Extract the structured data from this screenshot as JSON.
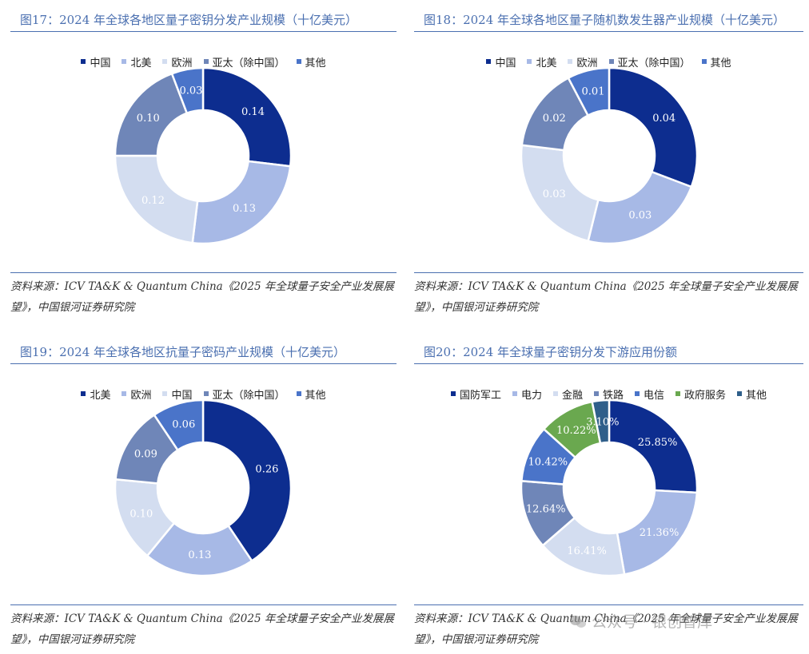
{
  "palette": {
    "navy": "#0d2d8f",
    "light_blue": "#a7b9e6",
    "pale_blue": "#d3ddf0",
    "steel_blue": "#6f86b8",
    "mid_blue": "#4a74c9",
    "green": "#6aa84f",
    "slate_blue": "#3a6b9a",
    "title_blue": "#4a6fb0"
  },
  "watermark": "公众号 · 银创智库",
  "chart_data": [
    {
      "type": "pie",
      "donut": true,
      "title": "图17：2024 年全球各地区量子密钥分发产业规模（十亿美元）",
      "categories": [
        "中国",
        "北美",
        "欧洲",
        "亚太（除中国）",
        "其他"
      ],
      "values": [
        0.14,
        0.13,
        0.12,
        0.1,
        0.03
      ],
      "labels": [
        "0.14",
        "0.13",
        "0.12",
        "0.10",
        "0.03"
      ],
      "colors": [
        "#0d2d8f",
        "#a7b9e6",
        "#d3ddf0",
        "#6f86b8",
        "#4a74c9"
      ],
      "legend_position": "top",
      "source": "资料来源：ICV TA&K & Quantum China《2025 年全球量子安全产业发展展望》，中国银河证券研究院"
    },
    {
      "type": "pie",
      "donut": true,
      "title": "图18：2024 年全球各地区量子随机数发生器产业规模（十亿美元）",
      "categories": [
        "中国",
        "北美",
        "欧洲",
        "亚太（除中国）",
        "其他"
      ],
      "values": [
        0.04,
        0.03,
        0.03,
        0.02,
        0.01
      ],
      "labels": [
        "0.04",
        "0.03",
        "0.03",
        "0.02",
        "0.01"
      ],
      "colors": [
        "#0d2d8f",
        "#a7b9e6",
        "#d3ddf0",
        "#6f86b8",
        "#4a74c9"
      ],
      "legend_position": "top",
      "source": "资料来源：ICV TA&K & Quantum China《2025 年全球量子安全产业发展展望》，中国银河证券研究院"
    },
    {
      "type": "pie",
      "donut": true,
      "title": "图19：2024 年全球各地区抗量子密码产业规模（十亿美元）",
      "categories": [
        "北美",
        "欧洲",
        "中国",
        "亚太（除中国）",
        "其他"
      ],
      "values": [
        0.26,
        0.13,
        0.1,
        0.09,
        0.06
      ],
      "labels": [
        "0.26",
        "0.13",
        "0.10",
        "0.09",
        "0.06"
      ],
      "colors": [
        "#0d2d8f",
        "#a7b9e6",
        "#d3ddf0",
        "#6f86b8",
        "#4a74c9"
      ],
      "legend_position": "top",
      "source": "资料来源：ICV TA&K & Quantum China《2025 年全球量子安全产业发展展望》，中国银河证券研究院"
    },
    {
      "type": "pie",
      "donut": true,
      "title": "图20：2024 年全球量子密钥分发下游应用份额",
      "categories": [
        "国防军工",
        "电力",
        "金融",
        "铁路",
        "电信",
        "政府服务",
        "其他"
      ],
      "values": [
        25.85,
        21.36,
        16.41,
        12.64,
        10.42,
        10.22,
        3.1
      ],
      "labels": [
        "25.85%",
        "21.36%",
        "16.41%",
        "12.64%",
        "10.42%",
        "10.22%",
        "3.10%"
      ],
      "colors": [
        "#0d2d8f",
        "#a7b9e6",
        "#d3ddf0",
        "#6f86b8",
        "#4a74c9",
        "#6aa84f",
        "#2f5f8a"
      ],
      "legend_position": "top",
      "source": "资料来源：ICV TA&K & Quantum China《2025 年全球量子安全产业发展展望》，中国银河证券研究院"
    }
  ]
}
